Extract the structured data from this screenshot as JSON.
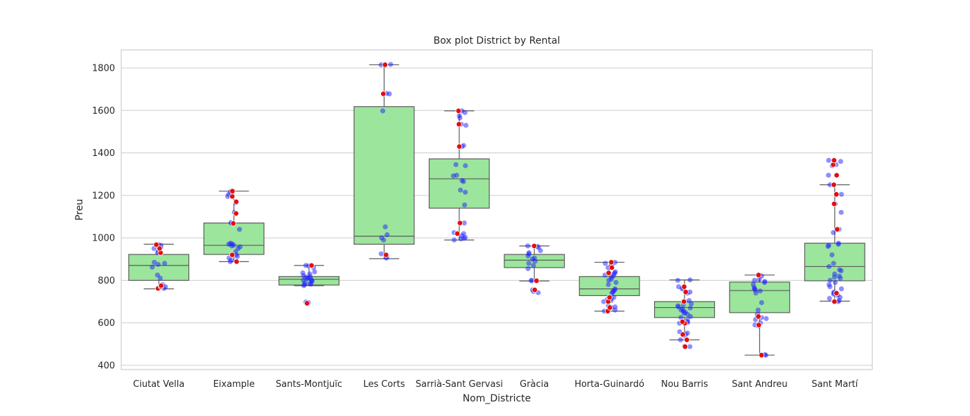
{
  "chart_data": {
    "type": "box",
    "title": "Box plot District by Rental",
    "xlabel": "Nom_Districte",
    "ylabel": "Preu",
    "ylim": [
      380,
      1885
    ],
    "yticks": [
      400,
      600,
      800,
      1000,
      1200,
      1400,
      1600,
      1800
    ],
    "grid": true,
    "categories": [
      "Ciutat Vella",
      "Eixample",
      "Sants-Montjuïc",
      "Les Corts",
      "Sarrià-Sant Gervasi",
      "Gràcia",
      "Horta-Guinardó",
      "Nou Barris",
      "Sant Andreu",
      "Sant Martí"
    ],
    "colors": {
      "box_fill": "#9ce59c",
      "box_edge": "#5a5a5a",
      "strip_points": "#1f1fff",
      "outline_points": "#e01010",
      "grid": "#cccccc",
      "frame": "#cccccc"
    },
    "boxes": [
      {
        "category": "Ciutat Vella",
        "whisker_low": 760,
        "q1": 800,
        "median": 870,
        "q3": 922,
        "whisker_high": 970
      },
      {
        "category": "Eixample",
        "whisker_low": 888,
        "q1": 922,
        "median": 965,
        "q3": 1070,
        "whisker_high": 1220
      },
      {
        "category": "Sants-Montjuïc",
        "whisker_low": 775,
        "q1": 778,
        "median": 805,
        "q3": 818,
        "whisker_high": 870
      },
      {
        "category": "Les Corts",
        "whisker_low": 902,
        "q1": 970,
        "median": 1008,
        "q3": 1618,
        "whisker_high": 1815
      },
      {
        "category": "Sarrià-Sant Gervasi",
        "whisker_low": 990,
        "q1": 1140,
        "median": 1278,
        "q3": 1372,
        "whisker_high": 1598
      },
      {
        "category": "Gràcia",
        "whisker_low": 797,
        "q1": 860,
        "median": 895,
        "q3": 922,
        "whisker_high": 962
      },
      {
        "category": "Horta-Guinardó",
        "whisker_low": 655,
        "q1": 728,
        "median": 760,
        "q3": 818,
        "whisker_high": 885
      },
      {
        "category": "Nou Barris",
        "whisker_low": 520,
        "q1": 625,
        "median": 672,
        "q3": 700,
        "whisker_high": 802
      },
      {
        "category": "Sant Andreu",
        "whisker_low": 448,
        "q1": 648,
        "median": 752,
        "q3": 792,
        "whisker_high": 825
      },
      {
        "category": "Sant Martí",
        "whisker_low": 702,
        "q1": 798,
        "median": 865,
        "q3": 975,
        "whisker_high": 1250
      }
    ],
    "points": [
      {
        "category": "Ciutat Vella",
        "values": [
          762,
          765,
          770,
          772,
          780,
          810,
          825,
          862,
          875,
          880,
          885,
          930,
          935,
          950,
          955,
          960,
          965,
          968
        ]
      },
      {
        "category": "Eixample",
        "values": [
          888,
          895,
          905,
          912,
          920,
          935,
          950,
          958,
          962,
          966,
          970,
          972,
          975,
          1040,
          1068,
          1072,
          1115,
          1120,
          1165,
          1170,
          1195,
          1205,
          1215,
          1220
        ]
      },
      {
        "category": "Sants-Montjuïc",
        "values": [
          692,
          695,
          698,
          775,
          780,
          782,
          785,
          790,
          795,
          798,
          800,
          805,
          808,
          812,
          815,
          818,
          822,
          830,
          835,
          840,
          860,
          868,
          870
        ]
      },
      {
        "category": "Les Corts",
        "values": [
          905,
          908,
          920,
          925,
          990,
          1000,
          1015,
          1052,
          1598,
          1678,
          1680,
          1815,
          1817
        ]
      },
      {
        "category": "Sarrià-Sant Gervasi",
        "values": [
          990,
          995,
          998,
          1002,
          1010,
          1020,
          1025,
          1070,
          1155,
          1215,
          1225,
          1265,
          1270,
          1292,
          1295,
          1340,
          1345,
          1430,
          1435,
          1530,
          1535,
          1565,
          1575,
          1590,
          1598,
          1600
        ]
      },
      {
        "category": "Gràcia",
        "values": [
          742,
          748,
          755,
          798,
          800,
          855,
          870,
          880,
          890,
          900,
          905,
          915,
          925,
          930,
          940,
          955,
          960,
          962
        ]
      },
      {
        "category": "Horta-Guinardó",
        "values": [
          655,
          660,
          672,
          675,
          680,
          700,
          705,
          710,
          715,
          720,
          740,
          745,
          750,
          755,
          760,
          780,
          790,
          800,
          805,
          815,
          820,
          825,
          830,
          835,
          840,
          860,
          870,
          880,
          885
        ]
      },
      {
        "category": "Nou Barris",
        "values": [
          488,
          490,
          520,
          545,
          552,
          558,
          598,
          602,
          605,
          612,
          625,
          630,
          640,
          645,
          650,
          655,
          660,
          665,
          670,
          675,
          680,
          685,
          690,
          700,
          705,
          740,
          745,
          760,
          765,
          770,
          800,
          802
        ]
      },
      {
        "category": "Sant Andreu",
        "values": [
          448,
          450,
          585,
          590,
          600,
          615,
          620,
          625,
          630,
          640,
          660,
          695,
          740,
          750,
          755,
          760,
          765,
          780,
          790,
          795,
          800,
          805,
          820,
          825
        ]
      },
      {
        "category": "Sant Martí",
        "values": [
          700,
          705,
          715,
          720,
          730,
          735,
          740,
          745,
          760,
          770,
          780,
          790,
          800,
          810,
          815,
          820,
          830,
          845,
          850,
          865,
          880,
          920,
          960,
          965,
          970,
          975,
          1025,
          1040,
          1120,
          1160,
          1205,
          1250,
          1295,
          1340,
          1345,
          1360,
          1365
        ]
      }
    ],
    "outlined_points": [
      {
        "category": "Ciutat Vella",
        "values": [
          762,
          770,
          775,
          930,
          950,
          968
        ]
      },
      {
        "category": "Eixample",
        "values": [
          888,
          920,
          1068,
          1115,
          1170,
          1195,
          1220
        ]
      },
      {
        "category": "Sants-Montjuïc",
        "values": [
          692,
          870
        ]
      },
      {
        "category": "Les Corts",
        "values": [
          920,
          1678,
          1815
        ]
      },
      {
        "category": "Sarrià-Sant Gervasi",
        "values": [
          1020,
          1070,
          1430,
          1535,
          1598
        ]
      },
      {
        "category": "Gràcia",
        "values": [
          755,
          798,
          962
        ]
      },
      {
        "category": "Horta-Guinardó",
        "values": [
          655,
          672,
          700,
          720,
          835,
          860,
          885
        ]
      },
      {
        "category": "Nou Barris",
        "values": [
          488,
          520,
          545,
          598,
          605,
          700,
          745,
          770
        ]
      },
      {
        "category": "Sant Andreu",
        "values": [
          448,
          590,
          630,
          825
        ]
      },
      {
        "category": "Sant Martí",
        "values": [
          700,
          740,
          1040,
          1160,
          1205,
          1250,
          1295,
          1345,
          1365
        ]
      }
    ]
  }
}
